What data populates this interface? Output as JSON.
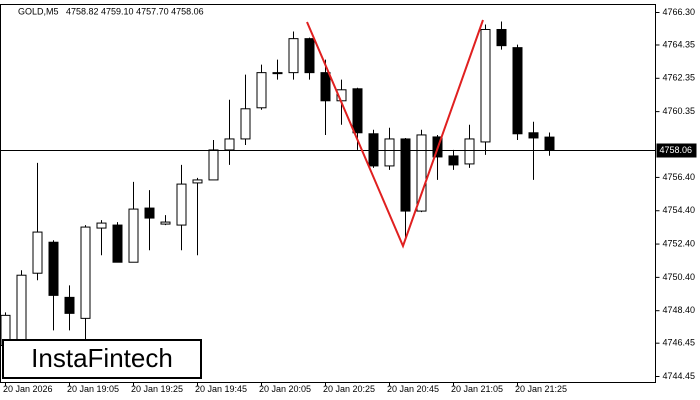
{
  "chart_data": {
    "type": "candlestick",
    "symbol": "GOLD,M5",
    "ohlc_text": "4758.82 4759.10 4757.70 4758.06",
    "watermark": "InstaFintech",
    "price_label": 4758.06,
    "categories": [
      "20 Jan 2026",
      null,
      null,
      null,
      "20 Jan 19:05",
      null,
      null,
      null,
      "20 Jan 19:25",
      null,
      null,
      null,
      "20 Jan 19:45",
      null,
      null,
      null,
      "20 Jan 20:05",
      null,
      null,
      null,
      "20 Jan 20:25",
      null,
      null,
      null,
      "20 Jan 20:45",
      null,
      null,
      null,
      "20 Jan 21:05",
      null,
      null,
      null,
      "20 Jan 21:25",
      null,
      null
    ],
    "open": [
      4746.31,
      4746.49,
      4750.65,
      4752.51,
      4749.2,
      4747.94,
      4753.36,
      4753.54,
      4751.31,
      4754.56,
      4753.6,
      4753.54,
      4756.07,
      4756.25,
      4758.05,
      4758.71,
      4760.58,
      4762.63,
      4762.69,
      4764.73,
      4762.69,
      4761.0,
      4761.72,
      4759.02,
      4757.09,
      4758.71,
      4754.38,
      4758.83,
      4757.69,
      4757.21,
      4758.53,
      4765.28,
      4764.19,
      4759.08,
      4758.82
    ],
    "high": [
      4748.3,
      4750.83,
      4757.27,
      4752.63,
      4749.92,
      4753.54,
      4753.84,
      4753.72,
      4756.13,
      4755.64,
      4754.14,
      4757.15,
      4756.37,
      4758.65,
      4761.06,
      4762.57,
      4763.17,
      4763.47,
      4765.16,
      4764.79,
      4763.47,
      4762.27,
      4761.78,
      4759.26,
      4759.38,
      4758.77,
      4759.26,
      4758.95,
      4758.05,
      4759.56,
      4765.58,
      4765.76,
      4764.37,
      4759.74,
      4759.1
    ],
    "low": [
      4746.31,
      4746.31,
      4750.23,
      4747.22,
      4747.22,
      4746.31,
      4751.73,
      4751.31,
      4751.31,
      4752.03,
      4753.54,
      4752.03,
      4751.73,
      4756.25,
      4757.15,
      4758.35,
      4760.46,
      4762.27,
      4762.27,
      4762.27,
      4758.95,
      4759.56,
      4758.05,
      4756.97,
      4756.85,
      4752.63,
      4754.32,
      4756.25,
      4756.85,
      4756.97,
      4757.75,
      4764.07,
      4758.65,
      4756.25,
      4757.7
    ],
    "close": [
      4748.12,
      4750.53,
      4753.12,
      4749.32,
      4748.24,
      4753.42,
      4753.66,
      4751.31,
      4754.5,
      4753.96,
      4753.72,
      4756.0,
      4756.25,
      4758.05,
      4758.71,
      4760.52,
      4762.69,
      4762.69,
      4764.73,
      4762.69,
      4761.0,
      4761.66,
      4759.08,
      4757.09,
      4758.71,
      4754.38,
      4758.95,
      4757.63,
      4757.15,
      4758.71,
      4765.28,
      4764.31,
      4759.02,
      4758.77,
      4758.06
    ],
    "ylim": [
      4744.09,
      4766.78
    ],
    "yticks": [
      {
        "value": 4766.3,
        "label": "4766.30"
      },
      4764.35,
      4762.35,
      4760.35,
      {
        "value": 4756.4,
        "label": "4756.40"
      },
      {
        "value": 4754.4,
        "label": "4754.40"
      },
      {
        "value": 4752.4,
        "label": "4752.40"
      },
      {
        "value": 4750.4,
        "label": "4750.40"
      },
      {
        "value": 4748.4,
        "label": "4748.40"
      },
      4746.45,
      4744.45
    ],
    "up_color": "#ffffff",
    "down_color": "#000000"
  }
}
